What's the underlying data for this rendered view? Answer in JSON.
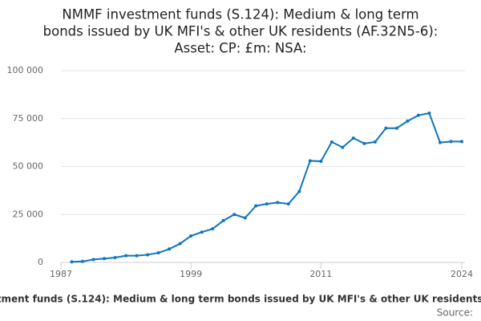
{
  "chart_data": {
    "type": "line",
    "title": [
      "NMMF investment funds (S.124): Medium & long term",
      "bonds issued by UK MFI's & other UK residents (AF.32N5-6):",
      "Asset: CP: £m: NSA:"
    ],
    "x": [
      1988,
      1989,
      1990,
      1991,
      1992,
      1993,
      1994,
      1995,
      1996,
      1997,
      1998,
      1999,
      2000,
      2001,
      2002,
      2003,
      2004,
      2005,
      2006,
      2007,
      2008,
      2009,
      2010,
      2011,
      2012,
      2013,
      2014,
      2015,
      2016,
      2017,
      2018,
      2019,
      2020,
      2021,
      2022,
      2023,
      2024
    ],
    "series": [
      {
        "name": "NMMF investment funds (S.124): Medium & long term bonds issued by UK MFI's & other UK residents (AF.32N5-6)",
        "color": "#0f76bc",
        "values": [
          300,
          500,
          1500,
          2000,
          2500,
          3500,
          3500,
          4000,
          5000,
          7000,
          9800,
          13800,
          15800,
          17500,
          21800,
          25000,
          23200,
          29500,
          30500,
          31200,
          30500,
          37000,
          53000,
          52700,
          62800,
          60000,
          64800,
          62000,
          62800,
          70000,
          70000,
          73700,
          76700,
          77800,
          62500,
          63000,
          63000
        ]
      }
    ],
    "xlim": [
      1987,
      2024
    ],
    "xticks": [
      1987,
      1999,
      2011,
      2024
    ],
    "ylim": [
      0,
      100000
    ],
    "yticks": [
      0,
      {
        "value": 25000,
        "label": "25 000"
      },
      {
        "value": 50000,
        "label": "50 000"
      },
      {
        "value": 75000,
        "label": "75 000"
      },
      {
        "value": 100000,
        "label": "100 000"
      }
    ],
    "grid": true,
    "source": "Source:"
  }
}
